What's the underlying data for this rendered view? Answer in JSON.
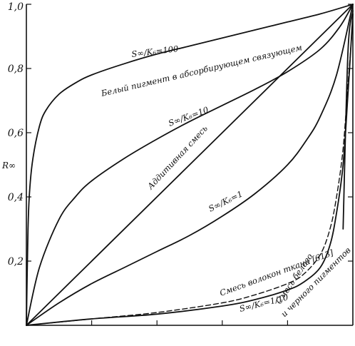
{
  "chart_data": {
    "type": "line",
    "ylabel": "R∞",
    "xlim": [
      0,
      1
    ],
    "ylim": [
      0,
      1
    ],
    "y_ticks": [
      "0,2",
      "0,4",
      "0,6",
      "0,8",
      "1,0"
    ],
    "y_tick_values": [
      0.2,
      0.4,
      0.6,
      0.8,
      1.0
    ],
    "x_tick_values": [
      0.2,
      0.4,
      0.6,
      0.8
    ],
    "grid": false,
    "series": [
      {
        "key": "s100",
        "values": [
          [
            0,
            0
          ],
          [
            0.005,
            0.3
          ],
          [
            0.01,
            0.42
          ],
          [
            0.02,
            0.52
          ],
          [
            0.04,
            0.62
          ],
          [
            0.06,
            0.67
          ],
          [
            0.1,
            0.72
          ],
          [
            0.15,
            0.755
          ],
          [
            0.2,
            0.78
          ],
          [
            0.3,
            0.815
          ],
          [
            0.4,
            0.845
          ],
          [
            0.5,
            0.87
          ],
          [
            0.6,
            0.895
          ],
          [
            0.7,
            0.92
          ],
          [
            0.8,
            0.945
          ],
          [
            0.9,
            0.97
          ],
          [
            1.0,
            1.0
          ]
        ]
      },
      {
        "key": "s10",
        "values": [
          [
            0,
            0
          ],
          [
            0.04,
            0.18
          ],
          [
            0.1,
            0.33
          ],
          [
            0.15,
            0.4
          ],
          [
            0.2,
            0.45
          ],
          [
            0.3,
            0.52
          ],
          [
            0.4,
            0.58
          ],
          [
            0.5,
            0.635
          ],
          [
            0.6,
            0.685
          ],
          [
            0.7,
            0.735
          ],
          [
            0.8,
            0.79
          ],
          [
            0.9,
            0.86
          ],
          [
            0.96,
            0.93
          ],
          [
            1.0,
            1.0
          ]
        ]
      },
      {
        "key": "additive",
        "values": [
          [
            0,
            0
          ],
          [
            1.0,
            1.0
          ]
        ]
      },
      {
        "key": "s1",
        "values": [
          [
            0,
            0
          ],
          [
            0.1,
            0.07
          ],
          [
            0.2,
            0.13
          ],
          [
            0.3,
            0.18
          ],
          [
            0.4,
            0.23
          ],
          [
            0.5,
            0.28
          ],
          [
            0.6,
            0.34
          ],
          [
            0.7,
            0.41
          ],
          [
            0.8,
            0.5
          ],
          [
            0.86,
            0.58
          ],
          [
            0.9,
            0.65
          ],
          [
            0.95,
            0.78
          ],
          [
            1.0,
            1.0
          ]
        ]
      },
      {
        "key": "fiber",
        "style": "dashed",
        "values": [
          [
            0,
            0
          ],
          [
            0.2,
            0.02
          ],
          [
            0.4,
            0.04
          ],
          [
            0.6,
            0.07
          ],
          [
            0.7,
            0.095
          ],
          [
            0.8,
            0.13
          ],
          [
            0.85,
            0.16
          ],
          [
            0.9,
            0.22
          ],
          [
            0.93,
            0.3
          ],
          [
            0.95,
            0.4
          ],
          [
            0.97,
            0.55
          ],
          [
            0.985,
            0.75
          ],
          [
            1.0,
            0.95
          ]
        ]
      },
      {
        "key": "s01",
        "values": [
          [
            0,
            0
          ],
          [
            0.2,
            0.02
          ],
          [
            0.4,
            0.035
          ],
          [
            0.6,
            0.06
          ],
          [
            0.7,
            0.08
          ],
          [
            0.8,
            0.11
          ],
          [
            0.85,
            0.135
          ],
          [
            0.9,
            0.18
          ],
          [
            0.93,
            0.25
          ],
          [
            0.95,
            0.35
          ],
          [
            0.97,
            0.5
          ],
          [
            0.985,
            0.72
          ],
          [
            1.0,
            0.97
          ]
        ]
      },
      {
        "key": "spike",
        "values": [
          [
            0.97,
            0.3
          ],
          [
            0.985,
            0.85
          ],
          [
            1.0,
            0.98
          ]
        ]
      }
    ],
    "annotations": [
      {
        "key": "a1",
        "text": "S∞/K₆=100"
      },
      {
        "key": "a2",
        "text": "Белый пигмент в абсорбирующем связующем"
      },
      {
        "key": "a3",
        "text": "S∞/K₆=10"
      },
      {
        "key": "a4",
        "text": "Аддитивная смесь"
      },
      {
        "key": "a5",
        "text": "S∞/K₆=1"
      },
      {
        "key": "a6",
        "text": "Смесь волокон ткани [613]"
      },
      {
        "key": "a7",
        "text": "S∞/K₆=1/10"
      },
      {
        "key": "a8",
        "text": "Смесь белого"
      },
      {
        "key": "a9",
        "text": "и черного пигментов"
      }
    ]
  }
}
